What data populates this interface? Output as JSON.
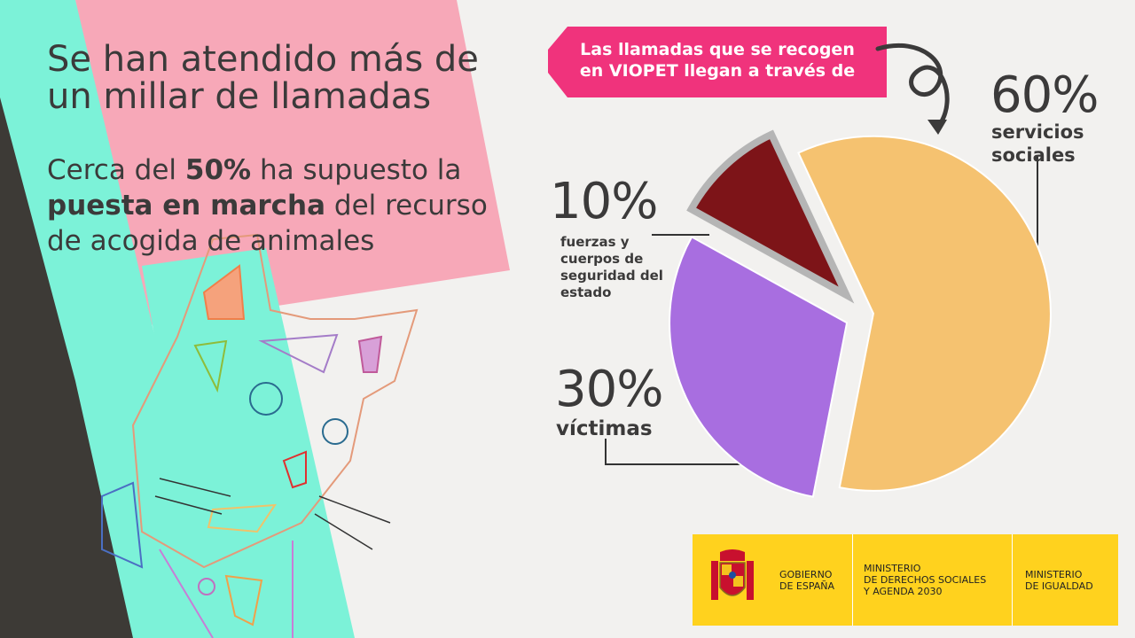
{
  "headline": "Se han atendido más de un millar de llamadas",
  "subline": {
    "part1": "Cerca del ",
    "bold1": "50%",
    "part2": " ha supuesto la ",
    "bold2": "puesta en marcha",
    "part3": " del recurso de acogida de animales"
  },
  "banner": {
    "line1": "Las llamadas que se recogen",
    "line2": "en VIOPET llegan a través de"
  },
  "chart_data": {
    "type": "pie",
    "title": "",
    "slices": [
      {
        "pct_label": "60%",
        "label": "servicios sociales",
        "value": 60,
        "color": "#f5c270"
      },
      {
        "pct_label": "30%",
        "label": "víctimas",
        "value": 30,
        "color": "#a86ee0"
      },
      {
        "pct_label": "10%",
        "label": "fuerzas y cuerpos de seguridad del estado",
        "value": 10,
        "color": "#7d1418"
      }
    ]
  },
  "colors": {
    "pink": "#f7a8b8",
    "aqua": "#7cf2d8",
    "dark": "#3d3a36",
    "banner": "#f0337c",
    "footer": "#ffd21e"
  },
  "footer": {
    "gobierno": "Gobierno\nde España",
    "ministerio1": "Ministerio\nde Derechos Sociales\ny Agenda 2030",
    "ministerio2": "Ministerio\nde Igualdad"
  }
}
